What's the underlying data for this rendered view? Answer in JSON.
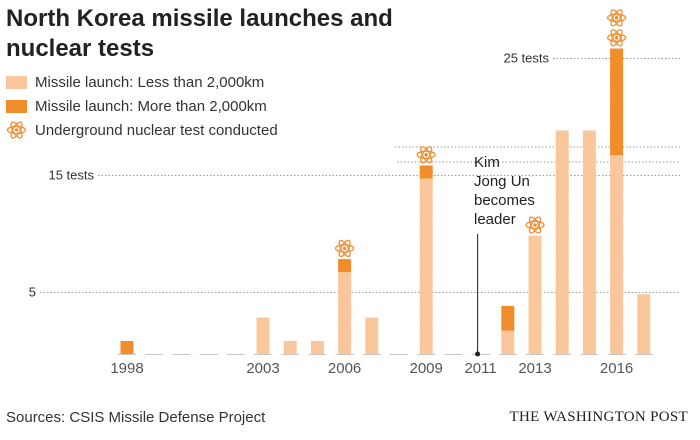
{
  "title": "North Korea missile launches and nuclear tests",
  "legend": [
    {
      "label": "Missile launch: Less than 2,000km",
      "color": "#f9c79b",
      "icon": "light-square"
    },
    {
      "label": "Missile launch: More than 2,000km",
      "color": "#f28d2c",
      "icon": "dark-square"
    },
    {
      "label": "Underground nuclear test conducted",
      "color": "#f28d2c",
      "icon": "atom-icon"
    }
  ],
  "annotation": {
    "lines": [
      "Kim",
      "Jong Un",
      "becomes",
      "leader"
    ],
    "year": 2011
  },
  "source": "Sources: CSIS Missile Defense Project",
  "credit": "THE WASHINGTON POST",
  "chart_data": {
    "type": "bar",
    "stacked": true,
    "x": [
      1998,
      1999,
      2000,
      2001,
      2002,
      2003,
      2004,
      2005,
      2006,
      2007,
      2008,
      2009,
      2010,
      2011,
      2012,
      2013,
      2014,
      2015,
      2016,
      2017
    ],
    "x_tick_labels": [
      "1998",
      "2003",
      "2006",
      "2009",
      "2011",
      "2013",
      "2016"
    ],
    "series": [
      {
        "name": "Missile launch: Less than 2,000km",
        "color": "#f9c79b",
        "values": [
          0,
          0,
          0,
          0,
          0,
          3,
          1,
          1,
          7,
          3,
          0,
          15,
          0,
          0,
          2,
          10,
          19,
          19,
          17,
          5
        ]
      },
      {
        "name": "Missile launch: More than 2,000km",
        "color": "#f28d2c",
        "values": [
          1,
          0,
          0,
          0,
          0,
          0,
          0,
          0,
          1,
          0,
          0,
          1,
          0,
          0,
          2,
          0,
          0,
          0,
          9,
          0
        ]
      },
      {
        "name": "Underground nuclear test conducted",
        "color": "#f28d2c",
        "values": [
          0,
          0,
          0,
          0,
          0,
          0,
          0,
          0,
          1,
          0,
          0,
          1,
          0,
          0,
          0,
          1,
          0,
          0,
          2,
          0
        ]
      }
    ],
    "y_gridlines": [
      {
        "value": 5,
        "label": "5"
      },
      {
        "value": 15,
        "label": "15 tests"
      },
      {
        "value": 25,
        "label": "25 tests"
      }
    ],
    "y_unit": "tests"
  }
}
